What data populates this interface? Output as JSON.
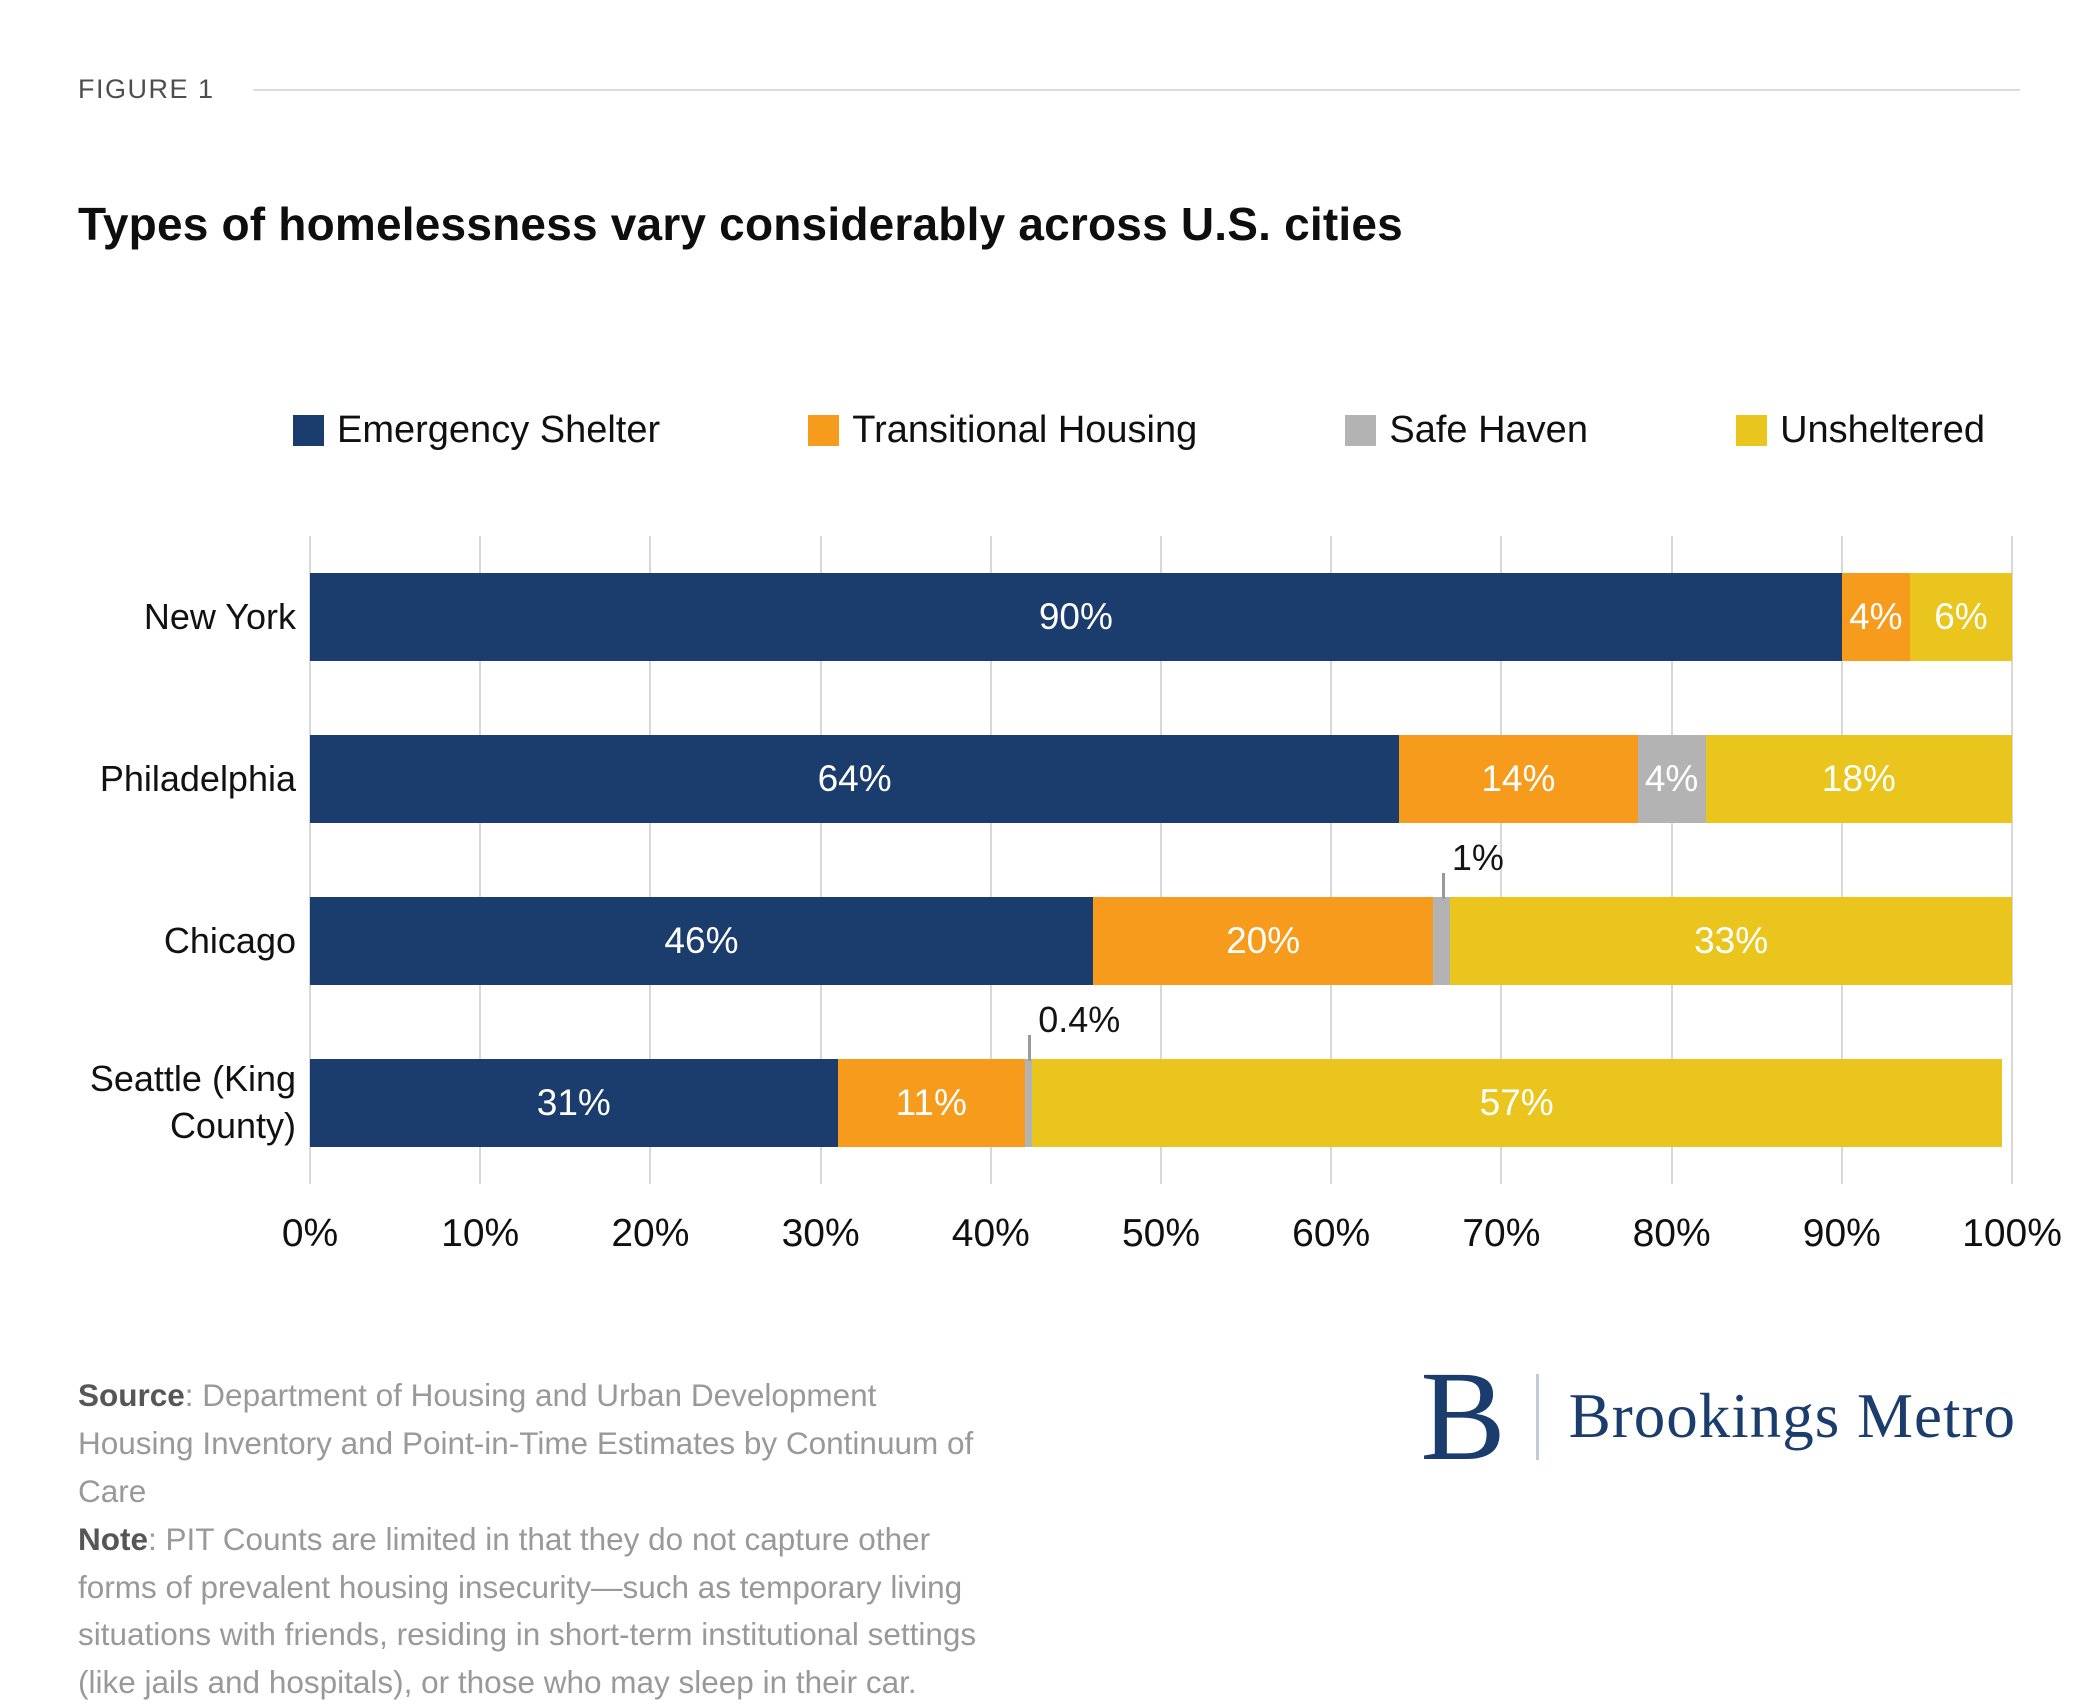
{
  "figure_label": "FIGURE 1",
  "title": "Types of homelessness vary considerably across U.S. cities",
  "chart_data": {
    "type": "bar",
    "orientation": "horizontal",
    "stacked": true,
    "grid": true,
    "legend_position": "top",
    "categories": [
      "New York",
      "Philadelphia",
      "Chicago",
      "Seattle (King County)"
    ],
    "series": [
      {
        "name": "Emergency Shelter",
        "color": "#1B3D6D",
        "values": [
          90,
          64,
          46,
          31
        ],
        "labels": [
          "90%",
          "64%",
          "46%",
          "31%"
        ]
      },
      {
        "name": "Transitional Housing",
        "color": "#F79B1D",
        "values": [
          4,
          14,
          20,
          11
        ],
        "labels": [
          "4%",
          "14%",
          "20%",
          "11%"
        ]
      },
      {
        "name": "Safe Haven",
        "color": "#B3B3B3",
        "values": [
          0,
          4,
          1,
          0.4
        ],
        "labels": [
          "",
          "4%",
          "1%",
          "0.4%"
        ]
      },
      {
        "name": "Unsheltered",
        "color": "#E9C51D",
        "values": [
          6,
          18,
          33,
          57
        ],
        "labels": [
          "6%",
          "18%",
          "33%",
          "57%"
        ]
      }
    ],
    "xlim": [
      0,
      100
    ],
    "x_ticks": [
      "0%",
      "10%",
      "20%",
      "30%",
      "40%",
      "50%",
      "60%",
      "70%",
      "80%",
      "90%",
      "100%"
    ]
  },
  "footer": {
    "source_label": "Source",
    "source_text": ": Department of Housing and Urban Development Housing Inventory and Point-in-Time Estimates by Continuum of Care",
    "note_label": "Note",
    "note_text": ": PIT Counts are limited in that they do not capture other forms of prevalent housing insecurity—such as temporary living situations with friends, residing in short-term institutional settings (like jails and hospitals), or those who may sleep in their car."
  },
  "logo": {
    "letter": "B",
    "wordmark": "Brookings Metro"
  }
}
